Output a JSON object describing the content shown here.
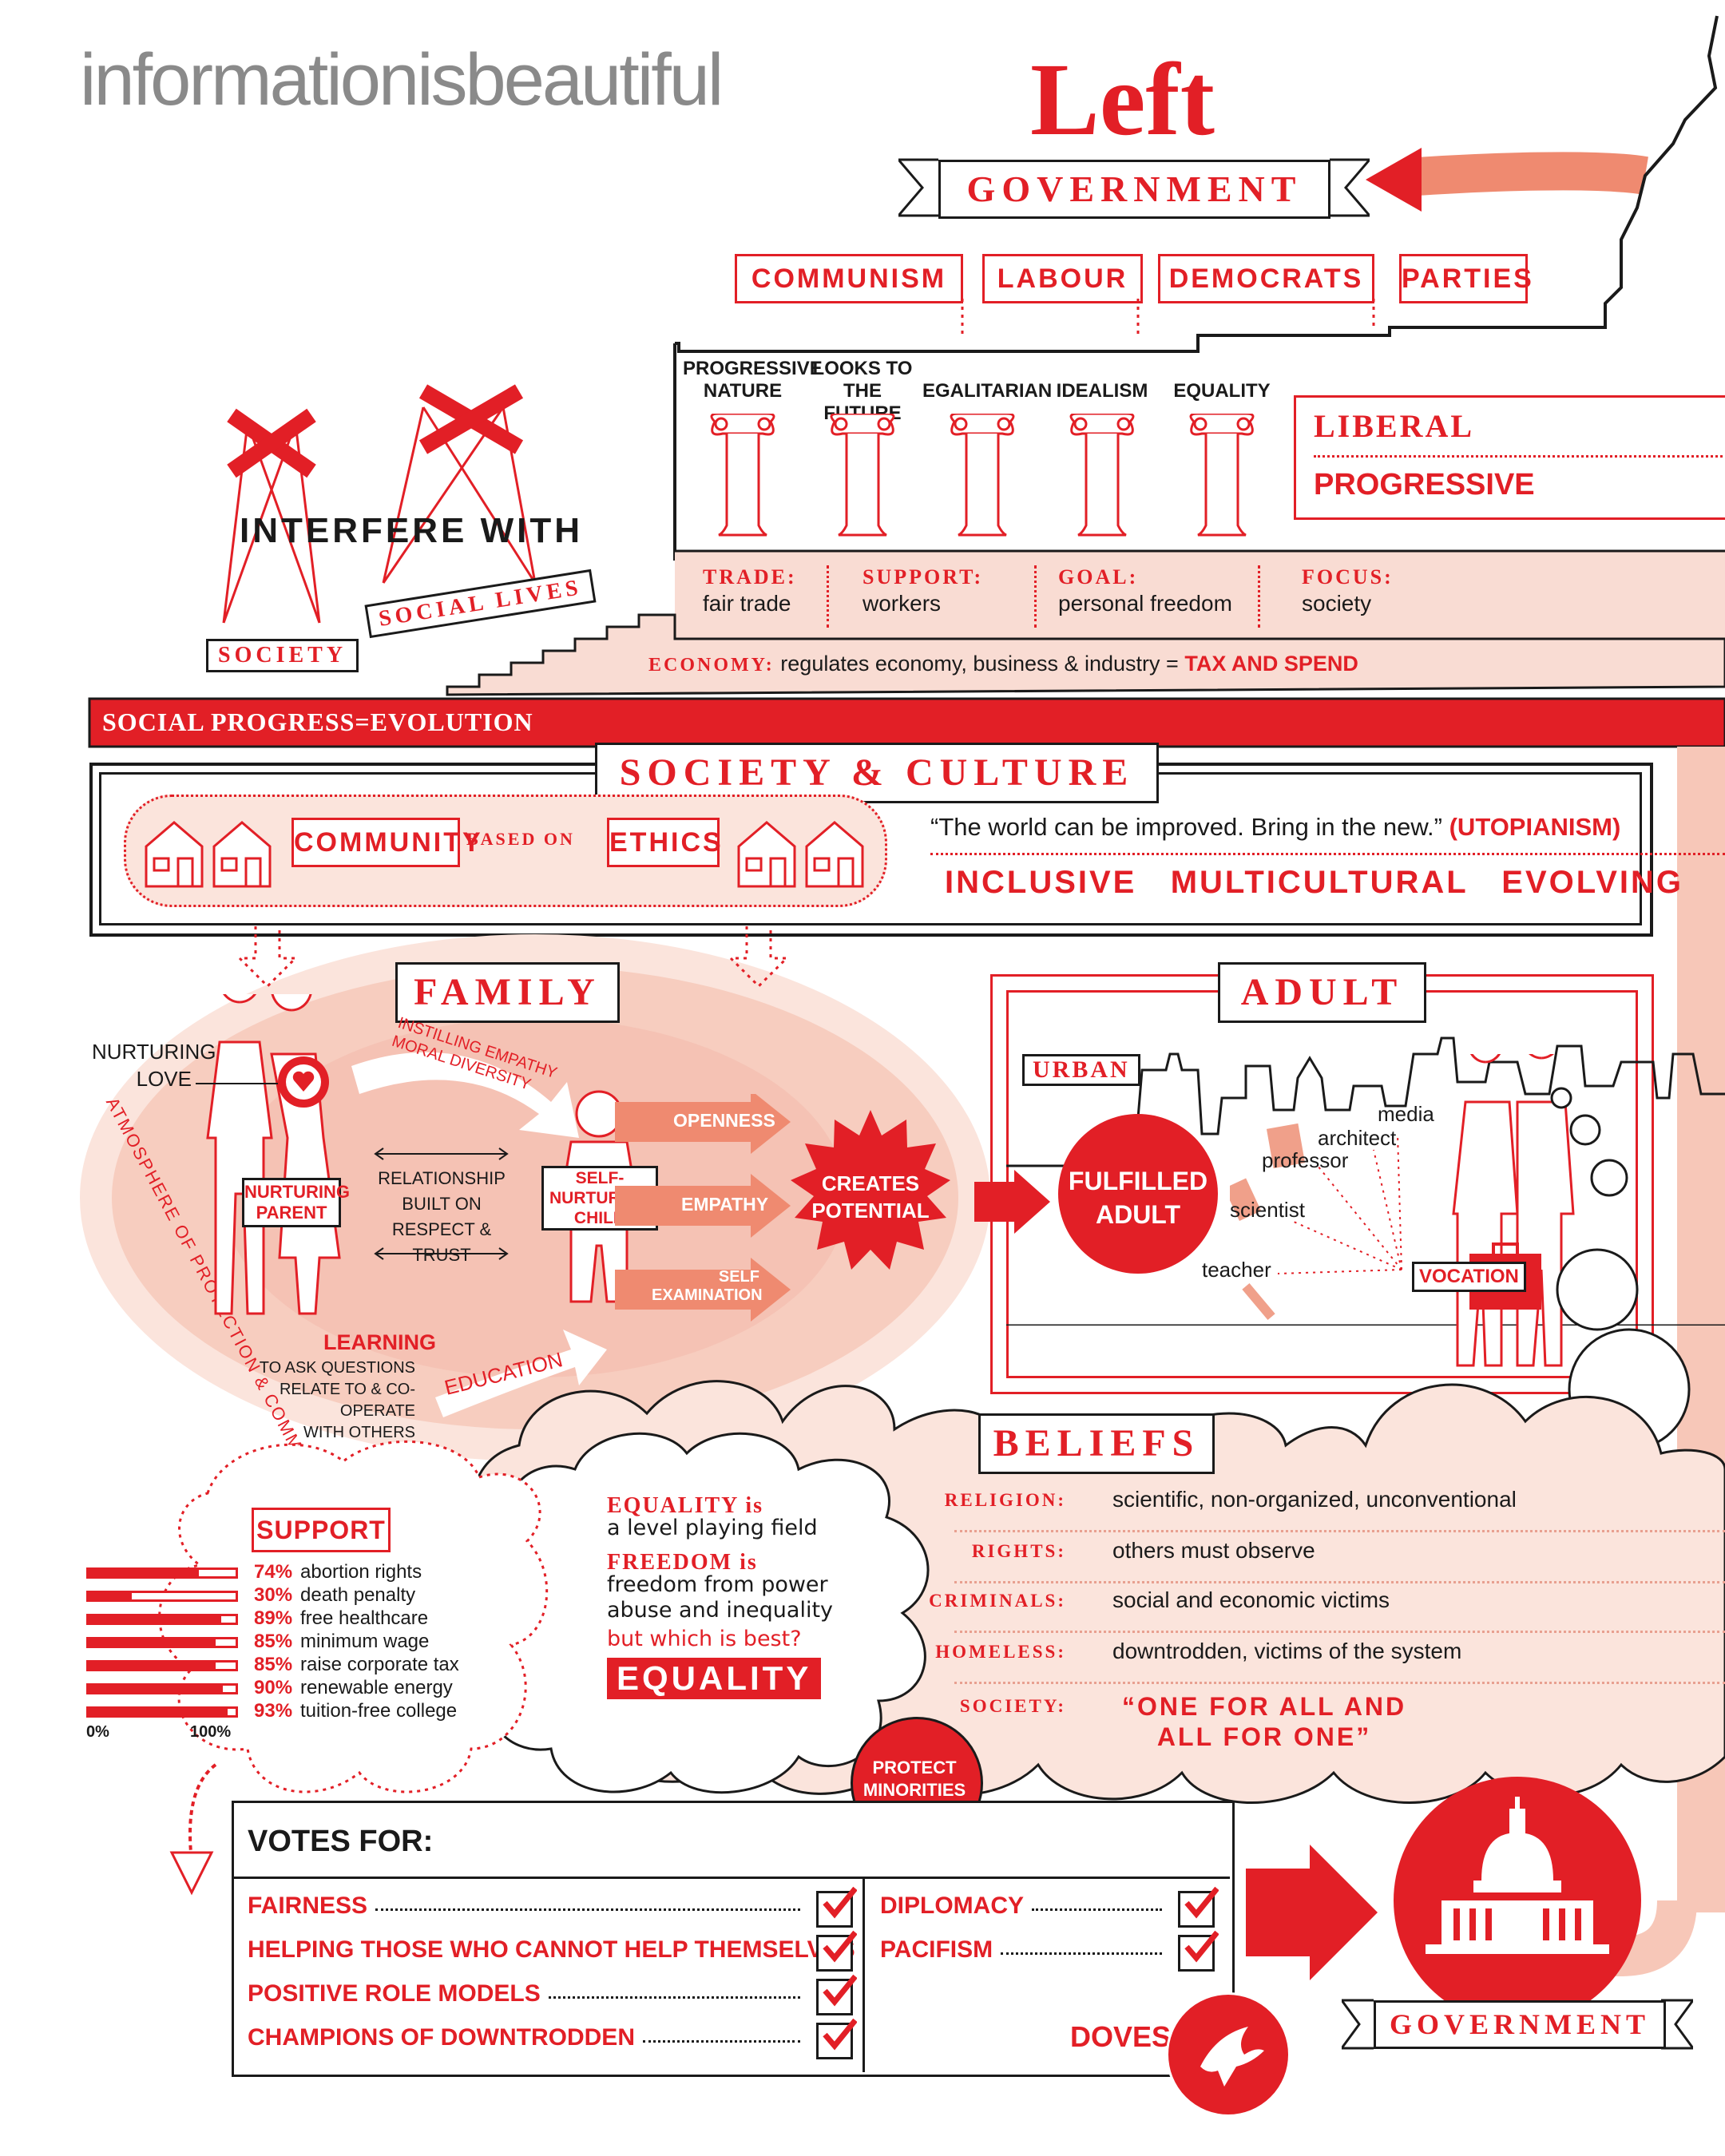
{
  "brand": "informationisbeautiful",
  "title": "Left",
  "government_top": "GOVERNMENT",
  "parties": [
    "COMMUNISM",
    "LABOUR",
    "DEMOCRATS",
    "PARTIES"
  ],
  "pillars": [
    {
      "label": "PROGRESSIVE\nNATURE"
    },
    {
      "label": "LOOKS TO\nTHE FUTURE"
    },
    {
      "label": "EGALITARIAN"
    },
    {
      "label": "IDEALISM"
    },
    {
      "label": "EQUALITY"
    }
  ],
  "labels_box": [
    "LIBERAL",
    "PROGRESSIVE"
  ],
  "economy_cols": [
    {
      "key": "TRADE:",
      "value": "fair trade"
    },
    {
      "key": "SUPPORT:",
      "value": "workers"
    },
    {
      "key": "GOAL:",
      "value": "personal freedom"
    },
    {
      "key": "FOCUS:",
      "value": "society"
    }
  ],
  "economy_line": {
    "key": "ECONOMY:",
    "text": "regulates economy, business & industry =",
    "emph": "TAX AND SPEND"
  },
  "interfere": {
    "title": "INTERFERE WITH",
    "society": "SOCIETY",
    "social_lives": "SOCIAL LIVES"
  },
  "social_progress": "SOCIAL PROGRESS=EVOLUTION",
  "society_culture": {
    "title": "SOCIETY & CULTURE",
    "community": "COMMUNITY",
    "based_on": "BASED ON",
    "ethics": "ETHICS",
    "quote": "“The world can be improved. Bring in the new.”",
    "quote_tag": "(UTOPIANISM)",
    "traits": "INCLUSIVE   MULTICULTURAL   EVOLVING"
  },
  "family": {
    "title": "FAMILY",
    "nurturing_love": "NURTURING\nLOVE",
    "atmosphere": "ATMOSPHERE OF PROTECTION & COMMUNICATION",
    "parent": "NURTURING\nPARENT",
    "instilling": "INSTILLING EMPATHY\nMORAL DIVERSITY",
    "relationship": "RELATIONSHIP\nBUILT ON\nRESPECT & TRUST",
    "child": "SELF-\nNURTURING\nCHILD",
    "arrows": [
      "OPENNESS",
      "EMPATHY",
      "SELF\nEXAMINATION"
    ],
    "creates": "CREATES\nPOTENTIAL",
    "learning": "LEARNING",
    "learning_sub": "TO ASK QUESTIONS\nRELATE TO & CO-OPERATE\nWITH OTHERS",
    "education": "EDUCATION"
  },
  "adult": {
    "title": "ADULT",
    "urban": "URBAN",
    "fulfilled": "FULFILLED\nADULT",
    "jobs": [
      "media",
      "architect",
      "professor",
      "scientist",
      "teacher"
    ],
    "vocation": "VOCATION"
  },
  "support": {
    "title": "SUPPORT",
    "items": [
      {
        "pct": "74%",
        "label": "abortion rights",
        "value": 74
      },
      {
        "pct": "30%",
        "label": "death penalty",
        "value": 30
      },
      {
        "pct": "89%",
        "label": "free healthcare",
        "value": 89
      },
      {
        "pct": "85%",
        "label": "minimum wage",
        "value": 85
      },
      {
        "pct": "85%",
        "label": "raise corporate tax",
        "value": 85
      },
      {
        "pct": "90%",
        "label": "renewable energy",
        "value": 90
      },
      {
        "pct": "93%",
        "label": "tuition-free college",
        "value": 93
      }
    ],
    "axis_min": "0%",
    "axis_max": "100%"
  },
  "equality_cloud": {
    "eq_key": "EQUALITY is",
    "eq_val": "a level playing field",
    "fr_key": "FREEDOM is",
    "fr_val": "freedom from power\nabuse and inequality",
    "question": "but which is best?",
    "answer": "EQUALITY"
  },
  "protect": "PROTECT\nMINORITIES",
  "beliefs": {
    "title": "BELIEFS",
    "rows": [
      {
        "key": "RELIGION:",
        "value": "scientific, non-organized, unconventional"
      },
      {
        "key": "RIGHTS:",
        "value": "others must observe"
      },
      {
        "key": "CRIMINALS:",
        "value": "social and economic victims"
      },
      {
        "key": "HOMELESS:",
        "value": "downtrodden, victims of the system"
      },
      {
        "key": "SOCIETY:",
        "value": "“ONE FOR ALL AND\nALL FOR ONE”"
      }
    ]
  },
  "votes": {
    "title": "VOTES FOR:",
    "left": [
      "FAIRNESS",
      "HELPING THOSE WHO CANNOT HELP THEMSELVES",
      "POSITIVE ROLE MODELS",
      "CHAMPIONS OF DOWNTRODDEN"
    ],
    "right": [
      "DIPLOMACY",
      "PACIFISM"
    ],
    "doves": "DOVES"
  },
  "government_bottom": "GOVERNMENT",
  "colors": {
    "accent": "#e21f26",
    "light": "#f9dcd3",
    "mid": "#f0a08a",
    "ink": "#1a1a1a"
  }
}
